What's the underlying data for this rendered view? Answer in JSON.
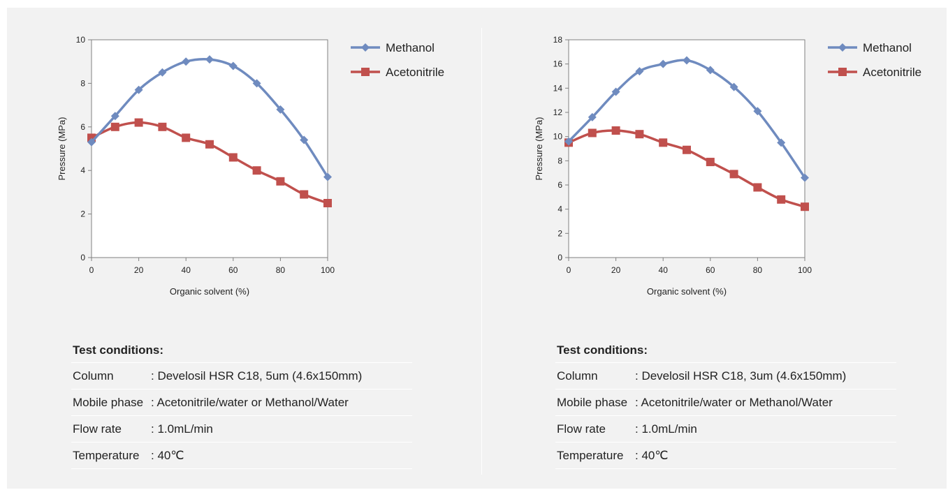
{
  "charts": [
    {
      "id": "left",
      "chart_data": {
        "type": "line",
        "x": [
          0,
          10,
          20,
          30,
          40,
          50,
          60,
          70,
          80,
          90,
          100
        ],
        "series": [
          {
            "name": "Methanol",
            "color": "#6f8bbf",
            "marker": "diamond",
            "values": [
              5.3,
              6.5,
              7.7,
              8.5,
              9.0,
              9.1,
              8.8,
              8.0,
              6.8,
              5.4,
              3.7
            ]
          },
          {
            "name": "Acetonitrile",
            "color": "#c0504d",
            "marker": "square",
            "values": [
              5.5,
              6.0,
              6.2,
              6.0,
              5.5,
              5.2,
              4.6,
              4.0,
              3.5,
              2.9,
              2.5
            ]
          }
        ],
        "xlabel": "Organic solvent (%)",
        "ylabel": "Pressure (MPa)",
        "xlim": [
          0,
          100
        ],
        "ylim": [
          0,
          10
        ],
        "xticks": [
          0,
          20,
          40,
          60,
          80,
          100
        ],
        "yticks": [
          0,
          2,
          4,
          6,
          8,
          10
        ],
        "grid": false,
        "legend": "right"
      },
      "conditions": {
        "title": "Test conditions:",
        "rows": [
          {
            "label": "Column",
            "value": ": Develosil HSR C18, 5um (4.6x150mm)"
          },
          {
            "label": "Mobile phase",
            "value": ": Acetonitrile/water or Methanol/Water"
          },
          {
            "label": "Flow rate",
            "value": ": 1.0mL/min"
          },
          {
            "label": "Temperature",
            "value": ": 40℃"
          }
        ]
      }
    },
    {
      "id": "right",
      "chart_data": {
        "type": "line",
        "x": [
          0,
          10,
          20,
          30,
          40,
          50,
          60,
          70,
          80,
          90,
          100
        ],
        "series": [
          {
            "name": "Methanol",
            "color": "#6f8bbf",
            "marker": "diamond",
            "values": [
              9.6,
              11.6,
              13.7,
              15.4,
              16.0,
              16.3,
              15.5,
              14.1,
              12.1,
              9.5,
              6.6
            ]
          },
          {
            "name": "Acetonitrile",
            "color": "#c0504d",
            "marker": "square",
            "values": [
              9.5,
              10.3,
              10.5,
              10.2,
              9.5,
              8.9,
              7.9,
              6.9,
              5.8,
              4.8,
              4.2
            ]
          }
        ],
        "xlabel": "Organic solvent (%)",
        "ylabel": "Pressure (MPa)",
        "xlim": [
          0,
          100
        ],
        "ylim": [
          0,
          18
        ],
        "xticks": [
          0,
          20,
          40,
          60,
          80,
          100
        ],
        "yticks": [
          0,
          2,
          4,
          6,
          8,
          10,
          12,
          14,
          16,
          18
        ],
        "grid": false,
        "legend": "right"
      },
      "conditions": {
        "title": "Test conditions:",
        "rows": [
          {
            "label": "Column",
            "value": ": Develosil HSR C18, 3um (4.6x150mm)"
          },
          {
            "label": "Mobile phase",
            "value": ": Acetonitrile/water or Methanol/Water"
          },
          {
            "label": "Flow rate",
            "value": ": 1.0mL/min"
          },
          {
            "label": "Temperature",
            "value": ": 40℃"
          }
        ]
      }
    }
  ]
}
